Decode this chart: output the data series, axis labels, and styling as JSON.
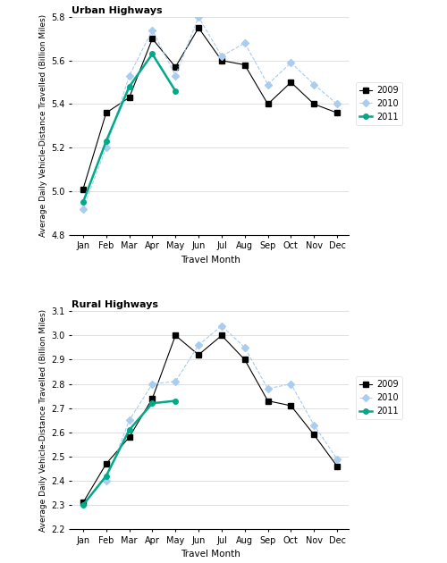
{
  "months": [
    "Jan",
    "Feb",
    "Mar",
    "Apr",
    "May",
    "Jun",
    "Jul",
    "Aug",
    "Sep",
    "Oct",
    "Nov",
    "Dec"
  ],
  "urban": {
    "2009": [
      5.01,
      5.36,
      5.43,
      5.7,
      5.57,
      5.75,
      5.6,
      5.58,
      5.4,
      5.5,
      5.4,
      5.36
    ],
    "2010": [
      4.92,
      5.2,
      5.53,
      5.74,
      5.53,
      5.8,
      5.62,
      5.68,
      5.49,
      5.59,
      5.49,
      5.4
    ],
    "2011": [
      4.95,
      5.23,
      5.48,
      5.63,
      5.46,
      null,
      null,
      null,
      null,
      null,
      null,
      null
    ]
  },
  "rural": {
    "2009": [
      2.31,
      2.47,
      2.58,
      2.74,
      3.0,
      2.92,
      3.0,
      2.9,
      2.73,
      2.71,
      2.59,
      2.46
    ],
    "2010": [
      null,
      2.4,
      2.65,
      2.8,
      2.81,
      2.96,
      3.04,
      2.95,
      2.78,
      2.8,
      2.63,
      2.49
    ],
    "2011": [
      2.3,
      2.42,
      2.61,
      2.72,
      2.73,
      null,
      null,
      null,
      null,
      null,
      null,
      null
    ]
  },
  "urban_ylim": [
    4.8,
    5.8
  ],
  "urban_yticks": [
    4.8,
    5.0,
    5.2,
    5.4,
    5.6,
    5.8
  ],
  "rural_ylim": [
    2.2,
    3.1
  ],
  "rural_yticks": [
    2.2,
    2.3,
    2.4,
    2.5,
    2.6,
    2.7,
    2.8,
    2.9,
    3.0,
    3.1
  ],
  "color_2009": "#000000",
  "color_2010": "#aaccee",
  "color_2011": "#00aa88",
  "ylabel": "Average Daily Vehicle-Distance Travelled (Billion Miles)",
  "xlabel": "Travel Month",
  "title_urban": "Urban Highways",
  "title_rural": "Rural Highways"
}
